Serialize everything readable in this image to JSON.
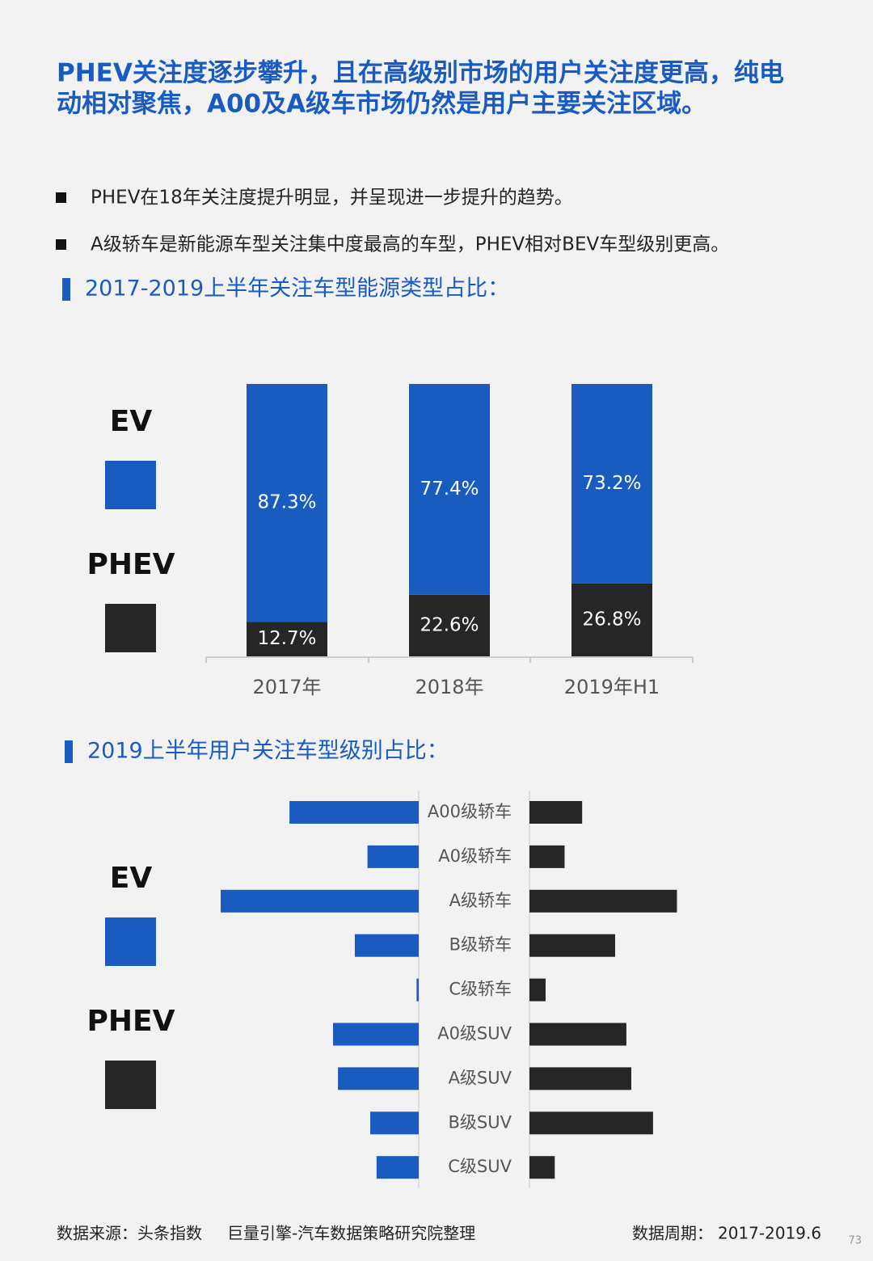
{
  "header": {
    "title": [
      "PHEV关注度逐步攀升，且在高级别市场的用户关注度更高，纯电",
      "动相对聚焦，A00及A级车市场仍然是用户主要关注区域。"
    ]
  },
  "bullets": [
    "PHEV在18年关注度提升明显，并呈现进一步提升的趋势。",
    "A级轿车是新能源车型关注集中度最高的车型，PHEV相对BEV车型级别更高。"
  ],
  "chart_data": [
    {
      "type": "bar",
      "stacked": true,
      "title": "2017-2019上半年关注车型能源类型占比：",
      "categories": [
        "2017年",
        "2018年",
        "2019年H1"
      ],
      "series": [
        {
          "name": "EV",
          "color": "#1a5bbf",
          "values": [
            87.3,
            77.4,
            73.2
          ],
          "value_labels": [
            "87.3%",
            "77.4%",
            "73.2%"
          ]
        },
        {
          "name": "PHEV",
          "color": "#262626",
          "values": [
            12.7,
            22.6,
            26.8
          ],
          "value_labels": [
            "12.7%",
            "22.6%",
            "26.8%"
          ]
        }
      ]
    },
    {
      "type": "butterfly",
      "title": "2019上半年用户关注车型级别占比：",
      "categories": [
        "A00级轿车",
        "A0级轿车",
        "A级轿车",
        "B级轿车",
        "C级轿车",
        "A0级SUV",
        "A级SUV",
        "B级SUV",
        "C级SUV"
      ],
      "series": [
        {
          "name": "EV",
          "color": "#1a5bbf",
          "values": [
            18.4,
            7.3,
            28.2,
            9.1,
            0.3,
            12.2,
            11.5,
            6.9,
            6.0
          ]
        },
        {
          "name": "PHEV",
          "color": "#262626",
          "values": [
            7.5,
            5.0,
            21.0,
            12.2,
            2.3,
            13.8,
            14.5,
            17.6,
            3.6
          ]
        }
      ]
    }
  ],
  "footer": {
    "source": "数据来源：头条指数",
    "credit": "巨量引擎-汽车数据策略研究院整理",
    "period_label": "数据周期：",
    "period": "2017-2019.6",
    "page": "73"
  }
}
